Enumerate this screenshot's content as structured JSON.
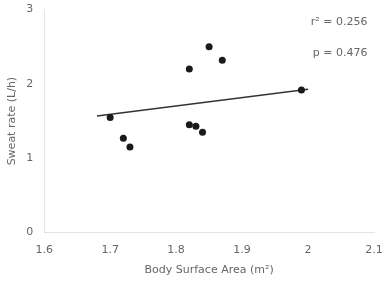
{
  "chart_data": {
    "type": "scatter",
    "xlabel": "Body Surface Area (m²)",
    "ylabel": "Sweat rate (L/h)",
    "series": [
      {
        "type": "scatter",
        "color": "#1a1a1a",
        "x": [
          1.7,
          1.72,
          1.73,
          1.82,
          1.83,
          1.84,
          1.85,
          1.87,
          1.99
        ],
        "values": [
          1.55,
          1.27,
          1.15,
          1.45,
          1.43,
          1.35,
          2.5,
          2.32,
          1.92
        ]
      },
      {
        "type": "scatter",
        "color": "#1a1a1a",
        "x": [
          1.82
        ],
        "values": [
          2.2
        ]
      },
      {
        "type": "line",
        "color": "#333333",
        "x": [
          1.68,
          2.0
        ],
        "values": [
          1.57,
          1.93
        ]
      }
    ],
    "annotations": [
      "r² = 0.256",
      "p = 0.476"
    ],
    "xlim": [
      1.6,
      2.1
    ],
    "ylim": [
      0,
      3
    ],
    "xticks": [
      1.6,
      1.7,
      1.8,
      1.9,
      2.0,
      2.1
    ],
    "yticks": [
      0,
      1,
      2,
      3
    ],
    "grid": false
  }
}
